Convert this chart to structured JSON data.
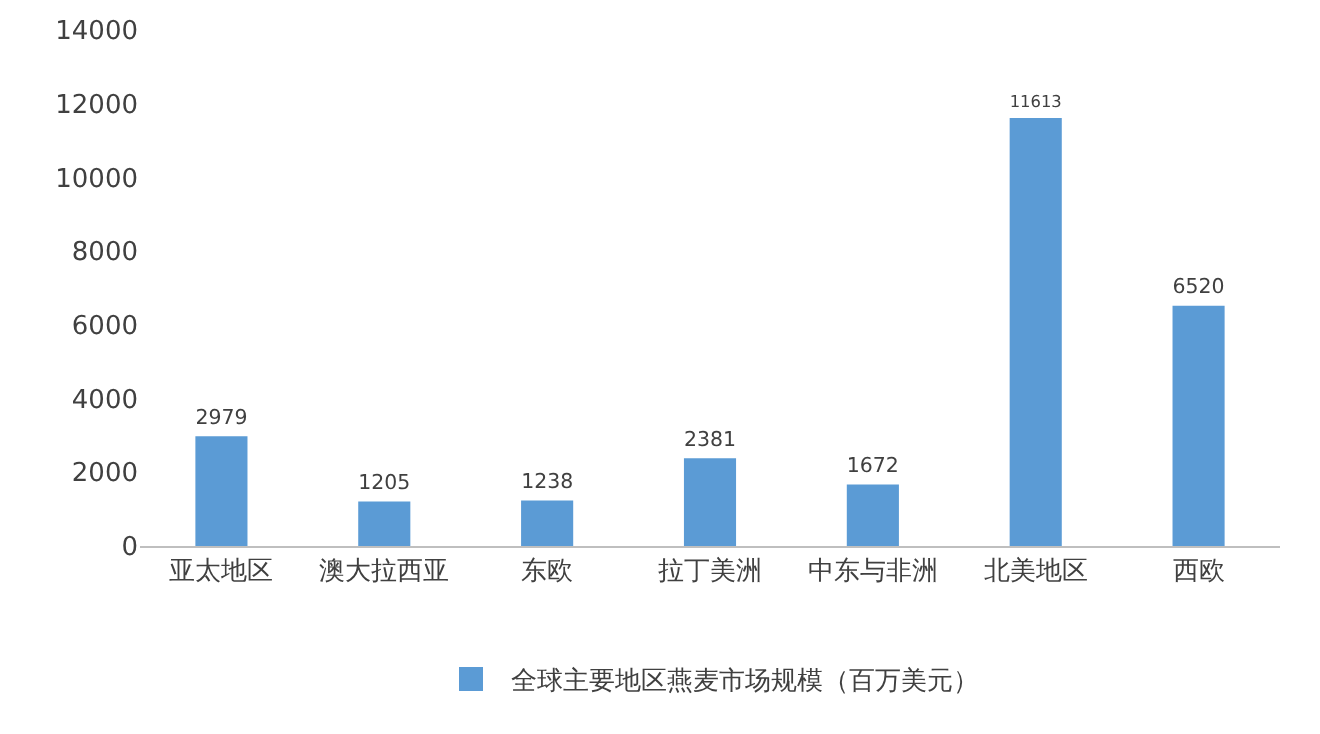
{
  "chart_data": {
    "type": "bar",
    "categories": [
      "亚太地区",
      "澳大拉西亚",
      "东欧",
      "拉丁美洲",
      "中东与非洲",
      "北美地区",
      "西欧"
    ],
    "series": [
      {
        "name": "全球主要地区燕麦市场规模（百万美元）",
        "color": "#5b9bd5",
        "values": [
          2979,
          1205,
          1238,
          2381,
          1672,
          11613,
          6520
        ]
      }
    ],
    "ylim": [
      0,
      14000
    ],
    "yticks": [
      0,
      2000,
      4000,
      6000,
      8000,
      10000,
      12000,
      14000
    ],
    "data_labels": true,
    "legend": "bottom",
    "grid": false
  }
}
